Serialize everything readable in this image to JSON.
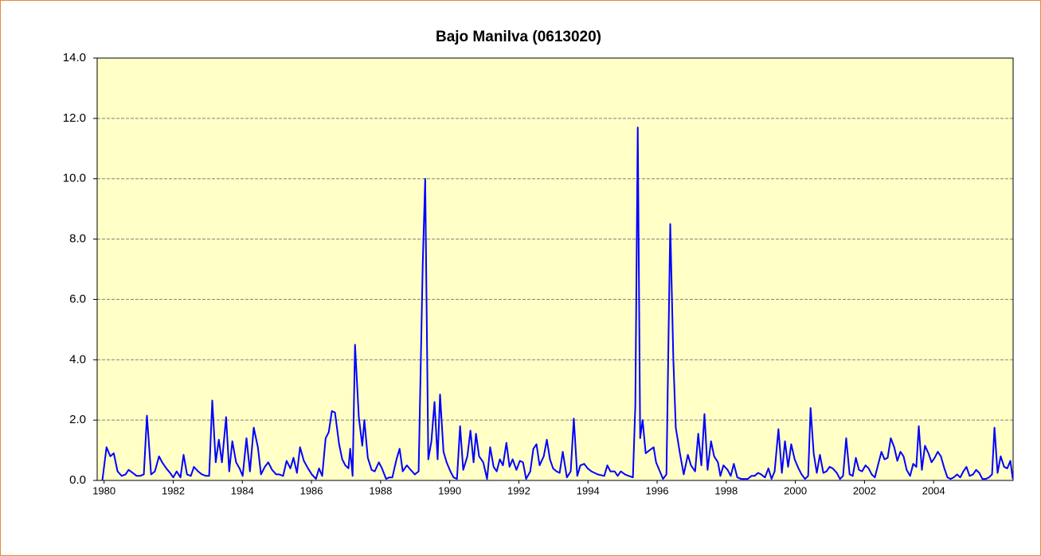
{
  "chart_data": {
    "type": "line",
    "title": "Bajo Manilva (0613020)",
    "xlim": [
      1979.8,
      2006.3
    ],
    "ylim": [
      0,
      14
    ],
    "xticks": [
      1980,
      1982,
      1984,
      1986,
      1988,
      1990,
      1992,
      1994,
      1996,
      1998,
      2000,
      2002,
      2004
    ],
    "yticks": [
      {
        "value": 0,
        "label": "0.0"
      },
      {
        "value": 2,
        "label": "2.0"
      },
      {
        "value": 4,
        "label": "4.0"
      },
      {
        "value": 6,
        "label": "6.0"
      },
      {
        "value": 8,
        "label": "8.0"
      },
      {
        "value": 10,
        "label": "10.0"
      },
      {
        "value": 12,
        "label": "12.0"
      },
      {
        "value": 14,
        "label": "14.0"
      }
    ],
    "grid": true,
    "x": [
      1979.95,
      1980.07,
      1980.18,
      1980.28,
      1980.39,
      1980.51,
      1980.62,
      1980.71,
      1980.83,
      1980.94,
      1981.04,
      1981.15,
      1981.24,
      1981.36,
      1981.47,
      1981.59,
      1981.68,
      1981.8,
      1981.91,
      1982.0,
      1982.1,
      1982.21,
      1982.3,
      1982.4,
      1982.51,
      1982.6,
      1982.72,
      1982.83,
      1982.95,
      1983.04,
      1983.13,
      1983.23,
      1983.32,
      1983.41,
      1983.53,
      1983.62,
      1983.71,
      1983.82,
      1983.92,
      1984.01,
      1984.12,
      1984.22,
      1984.33,
      1984.45,
      1984.54,
      1984.65,
      1984.75,
      1984.86,
      1984.98,
      1985.07,
      1985.18,
      1985.28,
      1985.39,
      1985.48,
      1985.58,
      1985.67,
      1985.78,
      1985.9,
      1986.01,
      1986.13,
      1986.22,
      1986.31,
      1986.41,
      1986.5,
      1986.59,
      1986.68,
      1986.8,
      1986.89,
      1986.98,
      1987.07,
      1987.12,
      1987.19,
      1987.26,
      1987.37,
      1987.47,
      1987.53,
      1987.63,
      1987.74,
      1987.83,
      1987.95,
      1988.04,
      1988.16,
      1988.25,
      1988.34,
      1988.46,
      1988.55,
      1988.64,
      1988.76,
      1988.87,
      1988.99,
      1989.1,
      1989.22,
      1989.29,
      1989.38,
      1989.47,
      1989.56,
      1989.65,
      1989.72,
      1989.82,
      1989.91,
      1990.02,
      1990.11,
      1990.21,
      1990.3,
      1990.39,
      1990.51,
      1990.6,
      1990.69,
      1990.76,
      1990.85,
      1990.97,
      1991.08,
      1991.17,
      1991.27,
      1991.36,
      1991.45,
      1991.54,
      1991.64,
      1991.73,
      1991.82,
      1991.93,
      1992.03,
      1992.12,
      1992.21,
      1992.33,
      1992.42,
      1992.51,
      1992.6,
      1992.72,
      1992.81,
      1992.9,
      1992.99,
      1993.09,
      1993.18,
      1993.27,
      1993.39,
      1993.5,
      1993.59,
      1993.69,
      1993.78,
      1993.89,
      1993.99,
      1994.1,
      1994.28,
      1994.47,
      1994.56,
      1994.65,
      1994.77,
      1994.86,
      1994.95,
      1995.07,
      1995.18,
      1995.3,
      1995.37,
      1995.44,
      1995.51,
      1995.58,
      1995.67,
      1995.78,
      1995.9,
      1995.97,
      1996.08,
      1996.17,
      1996.27,
      1996.38,
      1996.47,
      1996.54,
      1996.66,
      1996.77,
      1996.89,
      1996.98,
      1997.1,
      1997.19,
      1997.28,
      1997.37,
      1997.46,
      1997.56,
      1997.65,
      1997.76,
      1997.83,
      1997.92,
      1998.04,
      1998.13,
      1998.22,
      1998.32,
      1998.43,
      1998.52,
      1998.62,
      1998.73,
      1998.82,
      1998.92,
      1999.01,
      1999.12,
      1999.22,
      1999.31,
      1999.4,
      1999.51,
      1999.61,
      1999.7,
      1999.79,
      1999.88,
      1999.98,
      2000.09,
      2000.18,
      2000.28,
      2000.37,
      2000.44,
      2000.53,
      2000.62,
      2000.71,
      2000.81,
      2000.9,
      2000.99,
      2001.08,
      2001.2,
      2001.29,
      2001.38,
      2001.47,
      2001.57,
      2001.66,
      2001.75,
      2001.84,
      2001.93,
      2002.03,
      2002.12,
      2002.21,
      2002.3,
      2002.4,
      2002.49,
      2002.58,
      2002.67,
      2002.76,
      2002.86,
      2002.95,
      2003.04,
      2003.13,
      2003.22,
      2003.32,
      2003.41,
      2003.5,
      2003.57,
      2003.66,
      2003.75,
      2003.85,
      2003.94,
      2004.03,
      2004.12,
      2004.21,
      2004.31,
      2004.4,
      2004.49,
      2004.58,
      2004.68,
      2004.77,
      2004.86,
      2004.95,
      2005.04,
      2005.14,
      2005.23,
      2005.32,
      2005.41,
      2005.51,
      2005.6,
      2005.69,
      2005.76,
      2005.85,
      2005.94,
      2006.04,
      2006.13,
      2006.22,
      2006.29
    ],
    "series": [
      {
        "name": "Bajo Manilva",
        "color": "#0000ff",
        "values": [
          0,
          1.1,
          0.8,
          0.9,
          0.3,
          0.15,
          0.2,
          0.35,
          0.25,
          0.15,
          0.15,
          0.2,
          2.15,
          0.2,
          0.3,
          0.8,
          0.6,
          0.4,
          0.25,
          0.1,
          0.3,
          0.1,
          0.85,
          0.2,
          0.15,
          0.45,
          0.3,
          0.2,
          0.15,
          0.15,
          2.65,
          0.6,
          1.35,
          0.6,
          2.1,
          0.3,
          1.3,
          0.6,
          0.4,
          0.15,
          1.4,
          0.3,
          1.75,
          1.1,
          0.2,
          0.45,
          0.6,
          0.35,
          0.2,
          0.2,
          0.15,
          0.65,
          0.4,
          0.75,
          0.25,
          1.1,
          0.65,
          0.4,
          0.2,
          0.05,
          0.4,
          0.15,
          1.4,
          1.6,
          2.3,
          2.25,
          1.2,
          0.7,
          0.5,
          0.4,
          1.05,
          0.15,
          4.5,
          2.1,
          1.15,
          2.0,
          0.75,
          0.35,
          0.3,
          0.6,
          0.4,
          0.05,
          0.1,
          0.1,
          0.7,
          1.05,
          0.3,
          0.5,
          0.35,
          0.2,
          0.3,
          7.2,
          10.0,
          0.7,
          1.3,
          2.6,
          0.7,
          2.85,
          0.95,
          0.6,
          0.3,
          0.1,
          0.05,
          1.8,
          0.35,
          0.8,
          1.65,
          0.6,
          1.55,
          0.8,
          0.6,
          0.05,
          1.1,
          0.45,
          0.3,
          0.7,
          0.5,
          1.25,
          0.45,
          0.7,
          0.35,
          0.65,
          0.6,
          0.05,
          0.3,
          1.05,
          1.2,
          0.5,
          0.8,
          1.35,
          0.7,
          0.4,
          0.3,
          0.25,
          0.95,
          0.1,
          0.3,
          2.05,
          0.15,
          0.5,
          0.55,
          0.4,
          0.3,
          0.2,
          0.15,
          0.5,
          0.3,
          0.3,
          0.15,
          0.3,
          0.2,
          0.15,
          0.1,
          2.5,
          11.7,
          1.4,
          2.0,
          0.9,
          1.0,
          1.1,
          0.6,
          0.3,
          0.05,
          0.2,
          8.5,
          4.0,
          1.75,
          0.9,
          0.2,
          0.85,
          0.5,
          0.3,
          1.55,
          0.5,
          2.2,
          0.35,
          1.3,
          0.8,
          0.6,
          0.15,
          0.5,
          0.35,
          0.15,
          0.55,
          0.1,
          0.05,
          0.05,
          0.05,
          0.15,
          0.15,
          0.25,
          0.2,
          0.1,
          0.4,
          0.05,
          0.3,
          1.7,
          0.25,
          1.3,
          0.45,
          1.2,
          0.7,
          0.4,
          0.2,
          0.05,
          0.15,
          2.4,
          0.9,
          0.25,
          0.85,
          0.25,
          0.3,
          0.45,
          0.4,
          0.25,
          0.05,
          0.15,
          1.4,
          0.2,
          0.15,
          0.75,
          0.35,
          0.3,
          0.5,
          0.4,
          0.2,
          0.1,
          0.55,
          0.95,
          0.7,
          0.75,
          1.4,
          1.1,
          0.65,
          0.95,
          0.8,
          0.35,
          0.15,
          0.55,
          0.45,
          1.8,
          0.35,
          1.15,
          0.9,
          0.6,
          0.75,
          0.95,
          0.8,
          0.4,
          0.1,
          0.05,
          0.1,
          0.2,
          0.1,
          0.3,
          0.45,
          0.15,
          0.2,
          0.35,
          0.25,
          0.05,
          0.05,
          0.1,
          0.2,
          1.75,
          0.25,
          0.8,
          0.45,
          0.4,
          0.65,
          0.05
        ]
      }
    ]
  }
}
